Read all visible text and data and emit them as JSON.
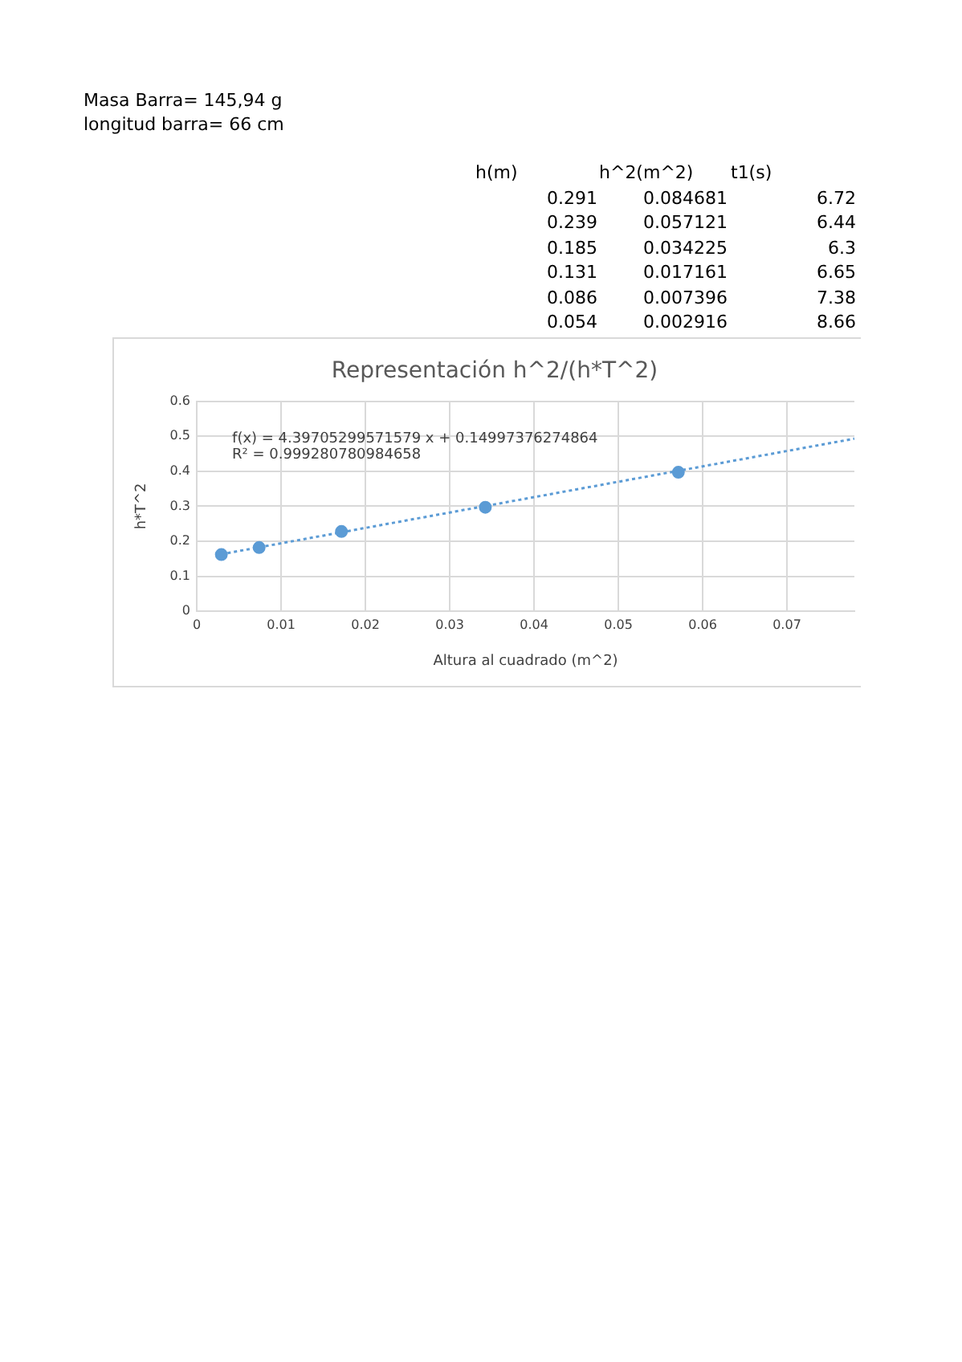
{
  "chart_data": {
    "type": "scatter",
    "title": "Representación h^2/(h*T^2)",
    "xlabel": "Altura al cuadrado (m^2)",
    "ylabel": "h*T^2",
    "annotations": [
      "Masa Barra= 145,94 g",
      "longitud barra= 66 cm",
      "h(m)",
      "h^2(m^2)",
      "t1(s)",
      "0.291",
      "0.084681",
      "6.72",
      "0.239",
      "0.057121",
      "6.44",
      "0.185",
      "0.034225",
      "6.3",
      "0.131",
      "0.017161",
      "6.65",
      "0.086",
      "0.007396",
      "7.38",
      "0.054",
      "0.002916",
      "8.66",
      "f(x) = 4.39705299571579 x + 0.14997376274864",
      "R² = 0.999280780984658"
    ],
    "x": [
      0.002916,
      0.007396,
      0.017161,
      0.034225,
      0.057121
    ],
    "series": [
      {
        "color": "#5b9bd5",
        "marker": "circle",
        "values": [
          0.162,
          0.182,
          0.228,
          0.297,
          0.397
        ]
      },
      {
        "type": "line",
        "color": "#5b9bd5",
        "marker": "none",
        "line_style": "dotted",
        "x": [
          0.0029,
          0.078
        ],
        "values": [
          0.163,
          0.493
        ]
      }
    ],
    "xlim": [
      0,
      0.078
    ],
    "xticks": [
      0,
      0.01,
      0.02,
      0.03,
      0.04,
      0.05,
      0.06,
      0.07
    ],
    "ylim": [
      0,
      0.6
    ],
    "yticks": [
      0,
      0.1,
      0.2,
      0.3,
      0.4,
      0.5,
      0.6
    ],
    "grid": true,
    "legend": false
  }
}
